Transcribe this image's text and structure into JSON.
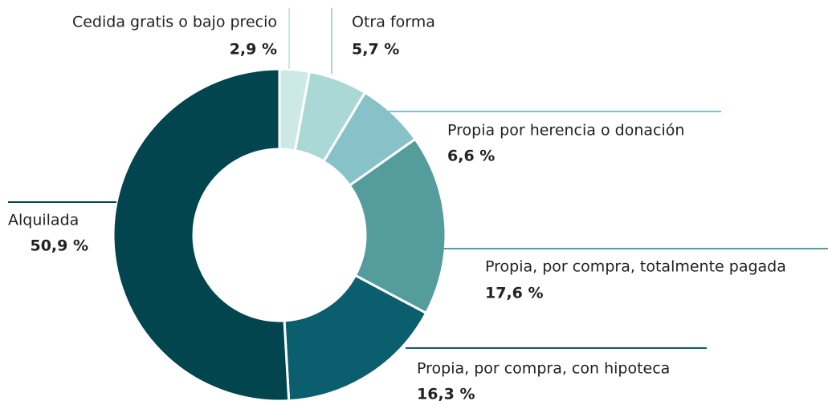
{
  "chart_data": {
    "type": "donut",
    "categories": [
      "Cedida gratis o bajo precio",
      "Otra forma",
      "Propia por herencia o donación",
      "Propia, por compra, totalmente pagada",
      "Propia, por compra, con hipoteca",
      "Alquilada"
    ],
    "values": [
      2.9,
      5.7,
      6.6,
      17.6,
      16.3,
      50.9
    ],
    "value_labels": [
      "2,9 %",
      "5,7 %",
      "6,6 %",
      "17,6 %",
      "16,3 %",
      "50,9 %"
    ],
    "colors": [
      "#cde9e6",
      "#aad8d6",
      "#86c2c8",
      "#559d9c",
      "#0b5e6e",
      "#03454f"
    ]
  }
}
